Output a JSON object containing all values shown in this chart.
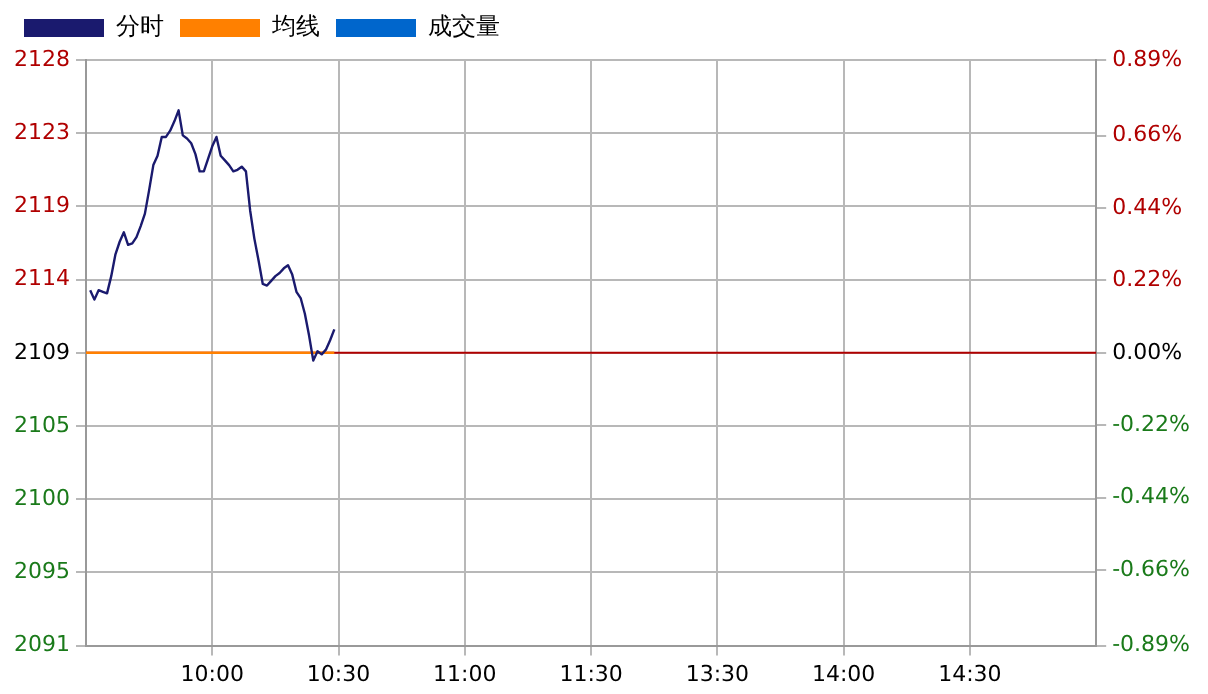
{
  "chart_data": {
    "type": "line",
    "categories": [
      null,
      null,
      null,
      null,
      null,
      null,
      null,
      null,
      null,
      null,
      null,
      null,
      null,
      null,
      null,
      null,
      null,
      null,
      null,
      null,
      null,
      null,
      null,
      null,
      null,
      null,
      null,
      null,
      null,
      null,
      "10:00",
      null,
      null,
      null,
      null,
      null,
      null,
      null,
      null,
      null,
      null,
      null,
      null,
      null,
      null,
      null,
      null,
      null,
      null,
      null,
      null,
      null,
      null,
      null,
      null,
      null,
      null,
      null,
      null,
      null,
      "10:30",
      null,
      null,
      null,
      null,
      null,
      null,
      null,
      null,
      null,
      null,
      null,
      null,
      null,
      null,
      null,
      null,
      null,
      null,
      null,
      null,
      null,
      null,
      null,
      null,
      null,
      null,
      null,
      null,
      null,
      "11:00",
      null,
      null,
      null,
      null,
      null,
      null,
      null,
      null,
      null,
      null,
      null,
      null,
      null,
      null,
      null,
      null,
      null,
      null,
      null,
      null,
      null,
      null,
      null,
      null,
      null,
      null,
      null,
      null,
      null,
      "11:30",
      null,
      null,
      null,
      null,
      null,
      null,
      null,
      null,
      null,
      null,
      null,
      null,
      null,
      null,
      null,
      null,
      null,
      null,
      null,
      null,
      null,
      null,
      null,
      null,
      null,
      null,
      null,
      null,
      null,
      "13:30",
      null,
      null,
      null,
      null,
      null,
      null,
      null,
      null,
      null,
      null,
      null,
      null,
      null,
      null,
      null,
      null,
      null,
      null,
      null,
      null,
      null,
      null,
      null,
      null,
      null,
      null,
      null,
      null,
      null,
      "14:00",
      null,
      null,
      null,
      null,
      null,
      null,
      null,
      null,
      null,
      null,
      null,
      null,
      null,
      null,
      null,
      null,
      null,
      null,
      null,
      null,
      null,
      null,
      null,
      null,
      null,
      null,
      null,
      null,
      null,
      "14:30",
      null,
      null,
      null,
      null,
      null,
      null,
      null,
      null,
      null,
      null,
      null,
      null,
      null,
      null,
      null,
      null,
      null,
      null,
      null,
      null,
      null,
      null,
      null,
      null,
      null,
      null,
      null,
      null,
      null,
      null
    ],
    "series": [
      {
        "name": "分时",
        "color": "#1a1a6e",
        "values": [
          null,
          2113.4,
          2112.8,
          2113.4,
          2113.3,
          2113.2,
          2114.3,
          2115.7,
          2116.5,
          2117.1,
          2116.3,
          2116.4,
          2116.8,
          2117.5,
          2118.3,
          2119.8,
          2121.4,
          2122.0,
          2123.2,
          2123.2,
          2123.6,
          2124.2,
          2124.9,
          2123.3,
          2123.1,
          2122.8,
          2122.1,
          2121.0,
          2121.0,
          2121.8,
          2122.6,
          2123.2,
          2122.0,
          2121.7,
          2121.4,
          2121.0,
          2121.1,
          2121.3,
          2121.0,
          2118.5,
          2116.7,
          2115.3,
          2113.8,
          2113.7,
          2114.0,
          2114.3,
          2114.5,
          2114.8,
          2115.0,
          2114.4,
          2113.3,
          2112.9,
          2111.9,
          2110.5,
          2108.9,
          2109.5,
          2109.3,
          2109.6,
          2110.2,
          2110.9,
          null,
          null,
          null,
          null,
          null,
          null,
          null,
          null,
          null,
          null,
          null,
          null,
          null,
          null,
          null,
          null,
          null,
          null,
          null,
          null,
          null,
          null,
          null,
          null,
          null,
          null,
          null,
          null,
          null,
          null,
          null,
          null,
          null,
          null,
          null,
          null,
          null,
          null,
          null,
          null,
          null,
          null,
          null,
          null,
          null,
          null,
          null,
          null,
          null,
          null,
          null,
          null,
          null,
          null,
          null,
          null,
          null,
          null,
          null,
          null,
          null,
          null,
          null,
          null,
          null,
          null,
          null,
          null,
          null,
          null,
          null,
          null,
          null,
          null,
          null,
          null,
          null,
          null,
          null,
          null,
          null,
          null,
          null,
          null,
          null,
          null,
          null,
          null,
          null,
          null,
          null,
          null,
          null,
          null,
          null,
          null,
          null,
          null,
          null,
          null,
          null,
          null,
          null,
          null,
          null,
          null,
          null,
          null,
          null,
          null,
          null,
          null,
          null,
          null,
          null,
          null,
          null,
          null,
          null,
          null,
          null,
          null,
          null,
          null,
          null,
          null,
          null,
          null,
          null,
          null,
          null,
          null,
          null,
          null,
          null,
          null,
          null,
          null,
          null,
          null,
          null,
          null,
          null,
          null,
          null,
          null,
          null,
          null,
          null,
          null,
          null,
          null,
          null,
          null,
          null,
          null,
          null,
          null,
          null,
          null,
          null,
          null,
          null,
          null,
          null,
          null,
          null,
          null,
          null,
          null,
          null,
          null,
          null,
          null,
          null,
          null,
          null,
          null,
          null,
          null,
          null
        ]
      },
      {
        "name": "均线",
        "color": "#ff8000",
        "values": [
          2109.4,
          2109.4,
          2109.4,
          2109.4,
          2109.4,
          2109.4,
          2109.4,
          2109.4,
          2109.4,
          2109.4,
          2109.4,
          2109.4,
          2109.4,
          2109.4,
          2109.4,
          2109.4,
          2109.4,
          2109.4,
          2109.4,
          2109.4,
          2109.4,
          2109.4,
          2109.4,
          2109.4,
          2109.4,
          2109.4,
          2109.4,
          2109.4,
          2109.4,
          2109.4,
          2109.4,
          2109.4,
          2109.4,
          2109.4,
          2109.4,
          2109.4,
          2109.4,
          2109.4,
          2109.4,
          2109.4,
          2109.4,
          2109.4,
          2109.4,
          2109.4,
          2109.4,
          2109.4,
          2109.4,
          2109.4,
          2109.4,
          2109.4,
          2109.4,
          2109.4,
          2109.4,
          2109.4,
          2109.4,
          2109.4,
          2109.4,
          2109.4,
          2109.4,
          2109.4,
          null,
          null,
          null,
          null,
          null,
          null,
          null,
          null,
          null,
          null,
          null,
          null,
          null,
          null,
          null,
          null,
          null,
          null,
          null,
          null,
          null,
          null,
          null,
          null,
          null,
          null,
          null,
          null,
          null,
          null,
          null,
          null,
          null,
          null,
          null,
          null,
          null,
          null,
          null,
          null,
          null,
          null,
          null,
          null,
          null,
          null,
          null,
          null,
          null,
          null,
          null,
          null,
          null,
          null,
          null,
          null,
          null,
          null,
          null,
          null,
          null,
          null,
          null,
          null,
          null,
          null,
          null,
          null,
          null,
          null,
          null,
          null,
          null,
          null,
          null,
          null,
          null,
          null,
          null,
          null,
          null,
          null,
          null,
          null,
          null,
          null,
          null,
          null,
          null,
          null,
          null,
          null,
          null,
          null,
          null,
          null,
          null,
          null,
          null,
          null,
          null,
          null,
          null,
          null,
          null,
          null,
          null,
          null,
          null,
          null,
          null,
          null,
          null,
          null,
          null,
          null,
          null,
          null,
          null,
          null,
          null,
          null,
          null,
          null,
          null,
          null,
          null,
          null,
          null,
          null,
          null,
          null,
          null,
          null,
          null,
          null,
          null,
          null,
          null,
          null,
          null,
          null,
          null,
          null,
          null,
          null,
          null,
          null,
          null,
          null,
          null,
          null,
          null,
          null,
          null,
          null,
          null,
          null,
          null,
          null,
          null,
          null,
          null,
          null,
          null,
          null,
          null,
          null,
          null,
          null,
          null,
          null,
          null,
          null,
          null,
          null,
          null,
          null,
          null,
          null,
          null
        ]
      },
      {
        "name": "成交量",
        "color": "#0066cc",
        "values": [
          null,
          null,
          null,
          null,
          null,
          null,
          null,
          null,
          null,
          null,
          null,
          null,
          null,
          null,
          null,
          null,
          null,
          null,
          null,
          null,
          null,
          null,
          null,
          null,
          null,
          null,
          null,
          null,
          null,
          null,
          null,
          null,
          null,
          null,
          null,
          null,
          null,
          null,
          null,
          null,
          null,
          null,
          null,
          null,
          null,
          null,
          null,
          null,
          null,
          null,
          null,
          null,
          null,
          null,
          null,
          null,
          null,
          null,
          null,
          null,
          null,
          null,
          null,
          null,
          null,
          null,
          null,
          null,
          null,
          null,
          null,
          null,
          null,
          null,
          null,
          null,
          null,
          null,
          null,
          null,
          null,
          null,
          null,
          null,
          null,
          null,
          null,
          null,
          null,
          null,
          null,
          null,
          null,
          null,
          null,
          null,
          null,
          null,
          null,
          null,
          null,
          null,
          null,
          null,
          null,
          null,
          null,
          null,
          null,
          null,
          null,
          null,
          null,
          null,
          null,
          null,
          null,
          null,
          null,
          null,
          null,
          null,
          null,
          null,
          null,
          null,
          null,
          null,
          null,
          null,
          null,
          null,
          null,
          null,
          null,
          null,
          null,
          null,
          null,
          null,
          null,
          null,
          null,
          null,
          null,
          null,
          null,
          null,
          null,
          null,
          null,
          null,
          null,
          null,
          null,
          null,
          null,
          null,
          null,
          null,
          null,
          null,
          null,
          null,
          null,
          null,
          null,
          null,
          null,
          null,
          null,
          null,
          null,
          null,
          null,
          null,
          null,
          null,
          null,
          null,
          null,
          null,
          null,
          null,
          null,
          null,
          null,
          null,
          null,
          null,
          null,
          null,
          null,
          null,
          null,
          null,
          null,
          null,
          null,
          null,
          null,
          null,
          null,
          null,
          null,
          null,
          null,
          null,
          null,
          null,
          null,
          null,
          null,
          null,
          null,
          null,
          null,
          null,
          null,
          null,
          null,
          null,
          null,
          null,
          null,
          null,
          null,
          null,
          null,
          null,
          null,
          null,
          null,
          null,
          null,
          null,
          null,
          null,
          null,
          null,
          null
        ]
      }
    ],
    "ylim": [
      2090.68,
      2128.12
    ],
    "yticks": [
      {
        "value": 2090.68,
        "label": "2091"
      },
      {
        "value": 2095.36,
        "label": "2095"
      },
      {
        "value": 2100.04,
        "label": "2100"
      },
      {
        "value": 2104.72,
        "label": "2105"
      },
      {
        "value": 2109.4,
        "label": "2109"
      },
      {
        "value": 2114.08,
        "label": "2114"
      },
      {
        "value": 2118.76,
        "label": "2119"
      },
      {
        "value": 2123.44,
        "label": "2123"
      },
      {
        "value": 2128.12,
        "label": "2128"
      }
    ],
    "y2lim": [
      -0.89,
      0.89
    ],
    "y2ticks": [
      {
        "value": -0.89,
        "label": "-0.89%"
      },
      {
        "value": -0.66,
        "label": "-0.66%"
      },
      {
        "value": -0.44,
        "label": "-0.44%"
      },
      {
        "value": -0.22,
        "label": "-0.22%"
      },
      {
        "value": 0,
        "label": "0.00%"
      },
      {
        "value": 0.22,
        "label": "0.22%"
      },
      {
        "value": 0.44,
        "label": "0.44%"
      },
      {
        "value": 0.66,
        "label": "0.66%"
      },
      {
        "value": 0.89,
        "label": "0.89%"
      }
    ],
    "ref_lines": [
      {
        "axis": "y",
        "value": 2109.4,
        "color": "#b00000"
      }
    ],
    "grid": true,
    "legend": "top left",
    "marker": "none"
  }
}
